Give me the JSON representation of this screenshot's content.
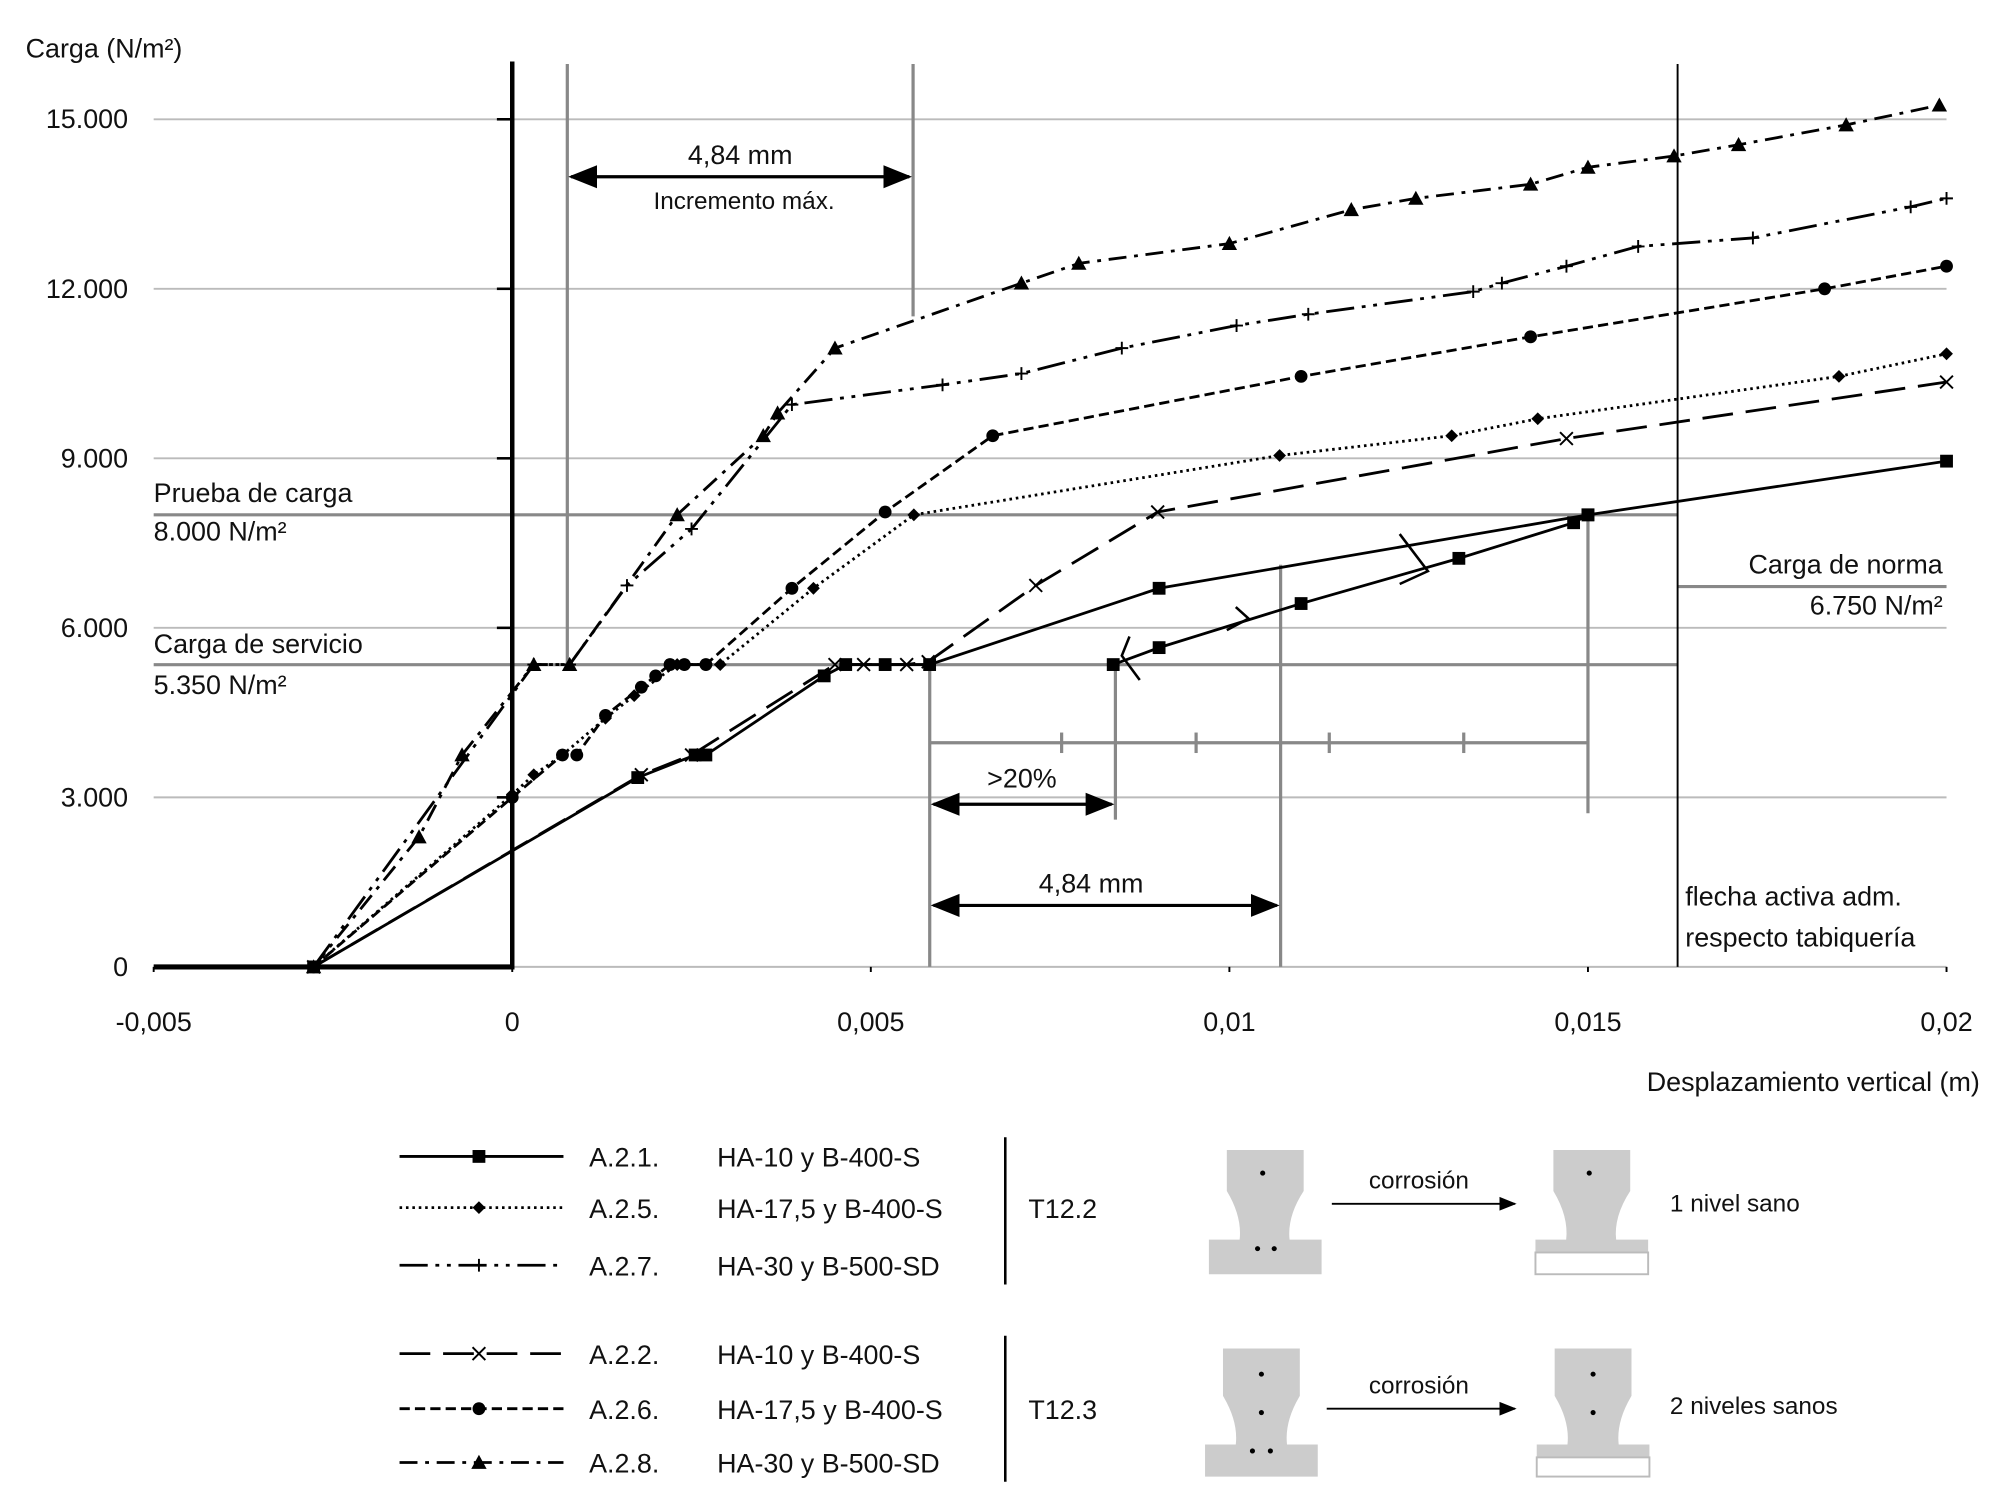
{
  "chart_data": {
    "type": "line",
    "y_label": "Carga (N/m²)",
    "x_label": "Desplazamiento vertical (m)",
    "xlim": [
      -0.005,
      0.02
    ],
    "ylim": [
      0,
      16000
    ],
    "xticks": [
      {
        "value": -0.005,
        "label": "-0,005"
      },
      0,
      {
        "value": 0.005,
        "label": "0,005"
      },
      {
        "value": 0.01,
        "label": "0,01"
      },
      {
        "value": 0.015,
        "label": "0,015"
      },
      {
        "value": 0.02,
        "label": "0,02"
      }
    ],
    "yticks": [
      0,
      {
        "value": 3000,
        "label": "3.000"
      },
      {
        "value": 6000,
        "label": "6.000"
      },
      {
        "value": 9000,
        "label": "9.000"
      },
      {
        "value": 12000,
        "label": "12.000"
      },
      {
        "value": 15000,
        "label": "15.000"
      }
    ],
    "grid": true,
    "annotations": {
      "prueba_title": "Prueba de carga",
      "prueba_value": "8.000 N/m²",
      "servicio_title": "Carga de servicio",
      "servicio_value": "5.350 N/m²",
      "norma_title": "Carga de norma",
      "norma_value": "6.750 N/m²",
      "flecha_1": "flecha activa adm.",
      "flecha_2": "respecto tabiquería",
      "incremento_value": "4,84 mm",
      "incremento_label": "Incremento máx.",
      "percent": ">20%",
      "bottom_value": "4,84 mm"
    },
    "series": [
      {
        "name": "A.2.1.",
        "material": "HA-10 y B-400-S",
        "group": 0,
        "color": "#000",
        "dash": "solid",
        "marker": "square",
        "x": [
          -0.00277,
          0.00175,
          0.00255,
          0.0027,
          0.00435,
          0.00465,
          0.0052,
          0.00582,
          0.00902,
          0.015,
          0.02,
          null,
          0.00838,
          0.00902,
          0.011,
          0.0132,
          0.0148,
          0.015
        ],
        "values": [
          0,
          3350,
          3750,
          3750,
          5150,
          5350,
          5350,
          5350,
          6700,
          8000,
          8950,
          null,
          5350,
          5650,
          6430,
          7230,
          7860,
          8000
        ]
      },
      {
        "name": "A.2.5.",
        "material": "HA-17,5 y B-400-S",
        "group": 0,
        "color": "#000",
        "dash": "dotted",
        "marker": "diamond",
        "x": [
          -0.00277,
          0,
          0.0003,
          0.0007,
          0.0013,
          0.0017,
          0.0023,
          0.0029,
          0.0042,
          0.0056,
          0.0107,
          0.0131,
          0.0143,
          0.0185,
          0.02
        ],
        "values": [
          0,
          3050,
          3400,
          3750,
          4400,
          4800,
          5350,
          5350,
          6700,
          8000,
          9050,
          9400,
          9700,
          10450,
          10850
        ]
      },
      {
        "name": "A.2.7.",
        "material": "HA-30 y B-500-SD",
        "group": 0,
        "color": "#000",
        "dash": "dashdotdot",
        "marker": "plus",
        "x": [
          -0.00277,
          0.0003,
          0.0008,
          0.0016,
          0.0025,
          0.0039,
          0.006,
          0.0071,
          0.0085,
          0.0101,
          0.0111,
          0.0134,
          0.0138,
          0.0147,
          0.0157,
          0.0173,
          0.0195,
          0.02
        ],
        "values": [
          0,
          5350,
          5350,
          6750,
          7750,
          9950,
          10300,
          10500,
          10950,
          11350,
          11550,
          11950,
          12100,
          12400,
          12750,
          12900,
          13450,
          13600
        ]
      },
      {
        "name": "A.2.2.",
        "material": "HA-10 y B-400-S",
        "group": 1,
        "color": "#000",
        "dash": "longdash",
        "marker": "x",
        "x": [
          -0.00277,
          0.0018,
          0.0025,
          0.0045,
          0.0049,
          0.0055,
          0.0058,
          0.0073,
          0.009,
          0.0147,
          0.02
        ],
        "values": [
          0,
          3400,
          3750,
          5350,
          5350,
          5350,
          5400,
          6750,
          8050,
          9350,
          10350
        ]
      },
      {
        "name": "A.2.6.",
        "material": "HA-17,5 y B-400-S",
        "group": 1,
        "color": "#000",
        "dash": "shortdash",
        "marker": "circle",
        "x": [
          -0.00277,
          0,
          0.0007,
          0.0009,
          0.0013,
          0.0018,
          0.002,
          0.0022,
          0.0024,
          0.0027,
          0.0039,
          0.0052,
          0.0067,
          0.011,
          0.0142,
          0.0183,
          0.02
        ],
        "values": [
          0,
          3000,
          3750,
          3750,
          4450,
          4950,
          5150,
          5350,
          5350,
          5350,
          6700,
          8050,
          9400,
          10450,
          11150,
          12000,
          12400
        ]
      },
      {
        "name": "A.2.8.",
        "material": "HA-30 y B-500-SD",
        "group": 1,
        "color": "#000",
        "dash": "dashdot",
        "marker": "triangle",
        "x": [
          -0.00277,
          -0.0013,
          -0.0007,
          0.0003,
          0.0008,
          0.0023,
          0.0035,
          0.0037,
          0.0045,
          0.0071,
          0.0079,
          0.01,
          0.0117,
          0.0126,
          0.0142,
          0.015,
          0.0162,
          0.0171,
          0.0186,
          0.0199
        ],
        "values": [
          0,
          2300,
          3750,
          5350,
          5350,
          8000,
          9400,
          9800,
          10950,
          12100,
          12450,
          12800,
          13400,
          13600,
          13850,
          14150,
          14350,
          14550,
          14900,
          15250
        ]
      }
    ],
    "legend_groups": [
      {
        "label": "T12.2",
        "corrosion_label": "corrosión",
        "state": "1 nivel sano"
      },
      {
        "label": "T12.3",
        "corrosion_label": "corrosión",
        "state": "2 niveles sanos"
      }
    ]
  }
}
